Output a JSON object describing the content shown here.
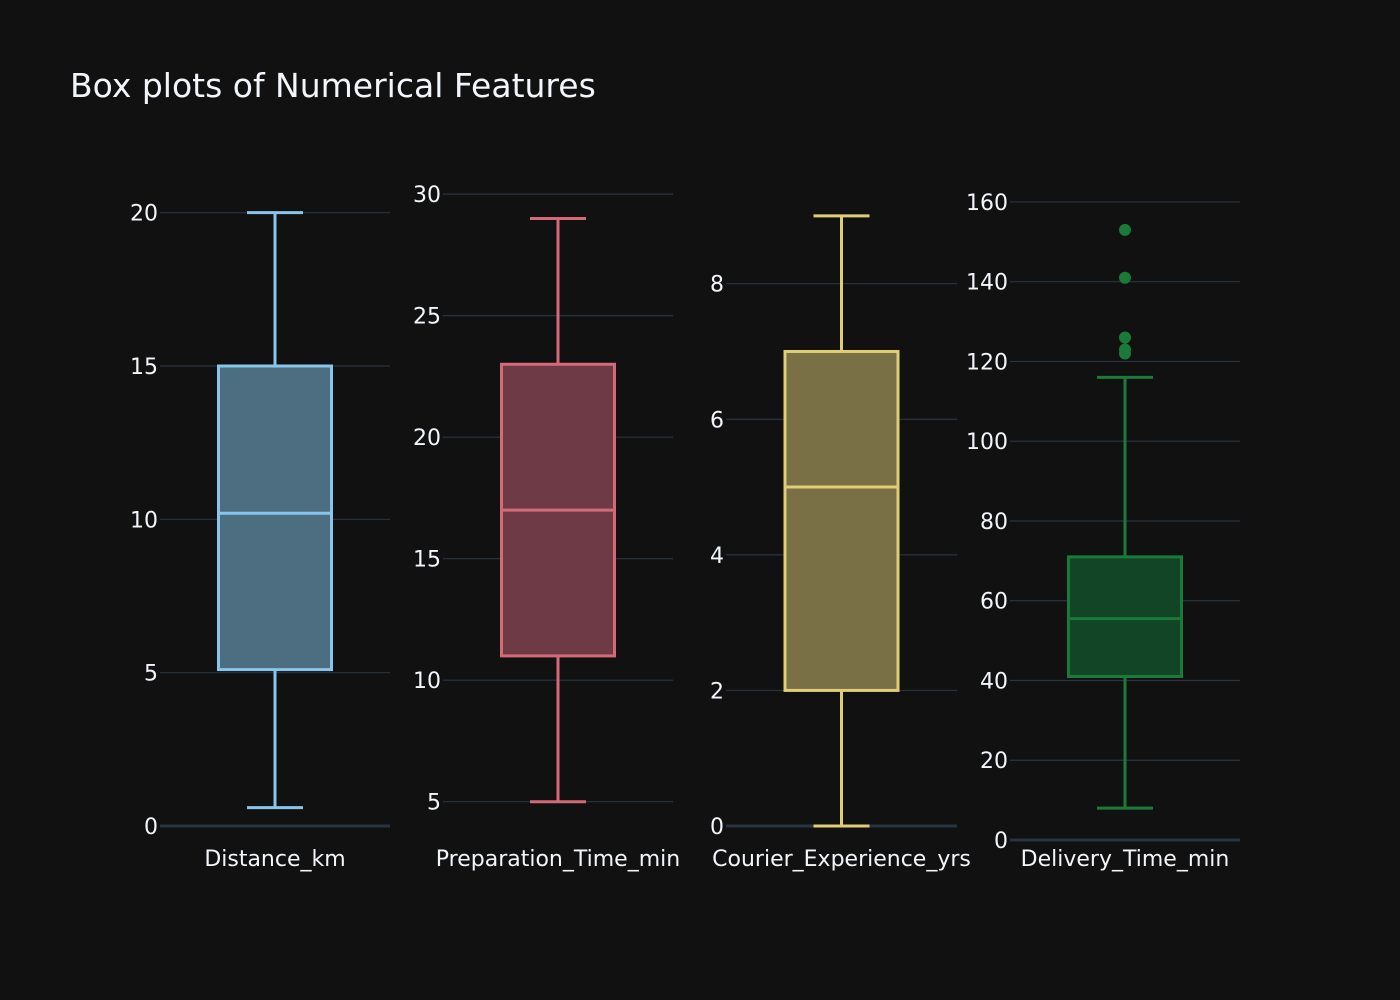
{
  "chart_data": {
    "type": "box",
    "title": "Box plots of Numerical Features",
    "theme": {
      "background": "#111111",
      "grid_color": "#283442",
      "zero_line_color": "#283442",
      "text_color": "#f2f5fa"
    },
    "panels": [
      {
        "name": "Distance_km",
        "color": "#87c5ec",
        "fill": "#4d6e80",
        "ylim": [
          0,
          21
        ],
        "yticks": [
          0,
          5,
          10,
          15,
          20
        ],
        "min": 0.6,
        "q1": 5.1,
        "median": 10.2,
        "q3": 15.0,
        "max": 20.0,
        "outliers": []
      },
      {
        "name": "Preparation_Time_min",
        "color": "#d46a78",
        "fill": "#6e3a45",
        "ylim": [
          4,
          30.5
        ],
        "yticks": [
          5,
          10,
          15,
          20,
          25,
          30
        ],
        "min": 5,
        "q1": 11,
        "median": 17,
        "q3": 23,
        "max": 29,
        "outliers": []
      },
      {
        "name": "Courier_Experience_yrs",
        "color": "#e0cd78",
        "fill": "#7a7045",
        "ylim": [
          0,
          9.5
        ],
        "yticks": [
          0,
          2,
          4,
          6,
          8
        ],
        "min": 0,
        "q1": 2,
        "median": 5,
        "q3": 7,
        "max": 9,
        "outliers": []
      },
      {
        "name": "Delivery_Time_min",
        "color": "#1a7a3a",
        "fill": "#124426",
        "ylim": [
          0,
          165
        ],
        "yticks": [
          0,
          20,
          40,
          60,
          80,
          100,
          120,
          140,
          160
        ],
        "min": 8,
        "q1": 41,
        "median": 55.5,
        "q3": 71,
        "max": 116,
        "outliers": [
          122,
          123,
          126,
          141,
          153
        ]
      }
    ]
  }
}
